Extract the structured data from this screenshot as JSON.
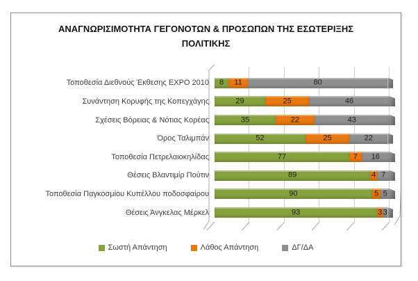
{
  "title": "ΑΝΑΓΝΩΡΙΣΙΜΟΤΗΤΑ ΓΕΓΟΝΟΤΩΝ & ΠΡΟΣΩΠΩΝ ΤΗΣ ΕΣΩΤΕΡΙΞΗΣ ΠΟΛΙΤΙΚΗΣ",
  "chart_data": {
    "type": "bar",
    "orientation": "horizontal-stacked",
    "style": "3d",
    "title": "ΑΝΑΓΝΩΡΙΣΙΜΟΤΗΤΑ ΓΕΓΟΝΟΤΩΝ & ΠΡΟΣΩΠΩΝ ΤΗΣ ΕΣΩΤΕΡΙΞΗΣ ΠΟΛΙΤΙΚΗΣ",
    "categories": [
      "Τοποθεσία Διεθνούς Έκθεσης EXPO 2010",
      "Συνάντηση Κορυφής της Κοπεγχάγης",
      "Σχέσεις Βόρειας & Νότιας Κορέας",
      "Όρος Ταλιμπάν",
      "Τοποθεσία Πετρελαιοκηλίδας",
      "Θέσεις Βλαντιμίρ Πούτιν",
      "Τοποθεσία Παγκοσμίου Κυπέλλου ποδοσφαίρου",
      "Θέσεις Άνγκελας Μέρκελ"
    ],
    "series": [
      {
        "key": "correct",
        "name": "Σωστή Απάντηση",
        "color": "#85A23E",
        "values": [
          8,
          29,
          35,
          52,
          77,
          89,
          90,
          93
        ]
      },
      {
        "key": "wrong",
        "name": "Λάθος Απάντηση",
        "color": "#E87812",
        "values": [
          11,
          25,
          22,
          25,
          7,
          4,
          5,
          3
        ]
      },
      {
        "key": "dk-na",
        "name": "ΔΓ/ΔΑ",
        "color": "#8F8F8F",
        "values": [
          80,
          46,
          43,
          22,
          16,
          7,
          5,
          3
        ]
      }
    ],
    "xlim": [
      0,
      100
    ],
    "gridline_step": 20,
    "grid": true,
    "legend_position": "bottom",
    "value_labels": "inside-center"
  }
}
